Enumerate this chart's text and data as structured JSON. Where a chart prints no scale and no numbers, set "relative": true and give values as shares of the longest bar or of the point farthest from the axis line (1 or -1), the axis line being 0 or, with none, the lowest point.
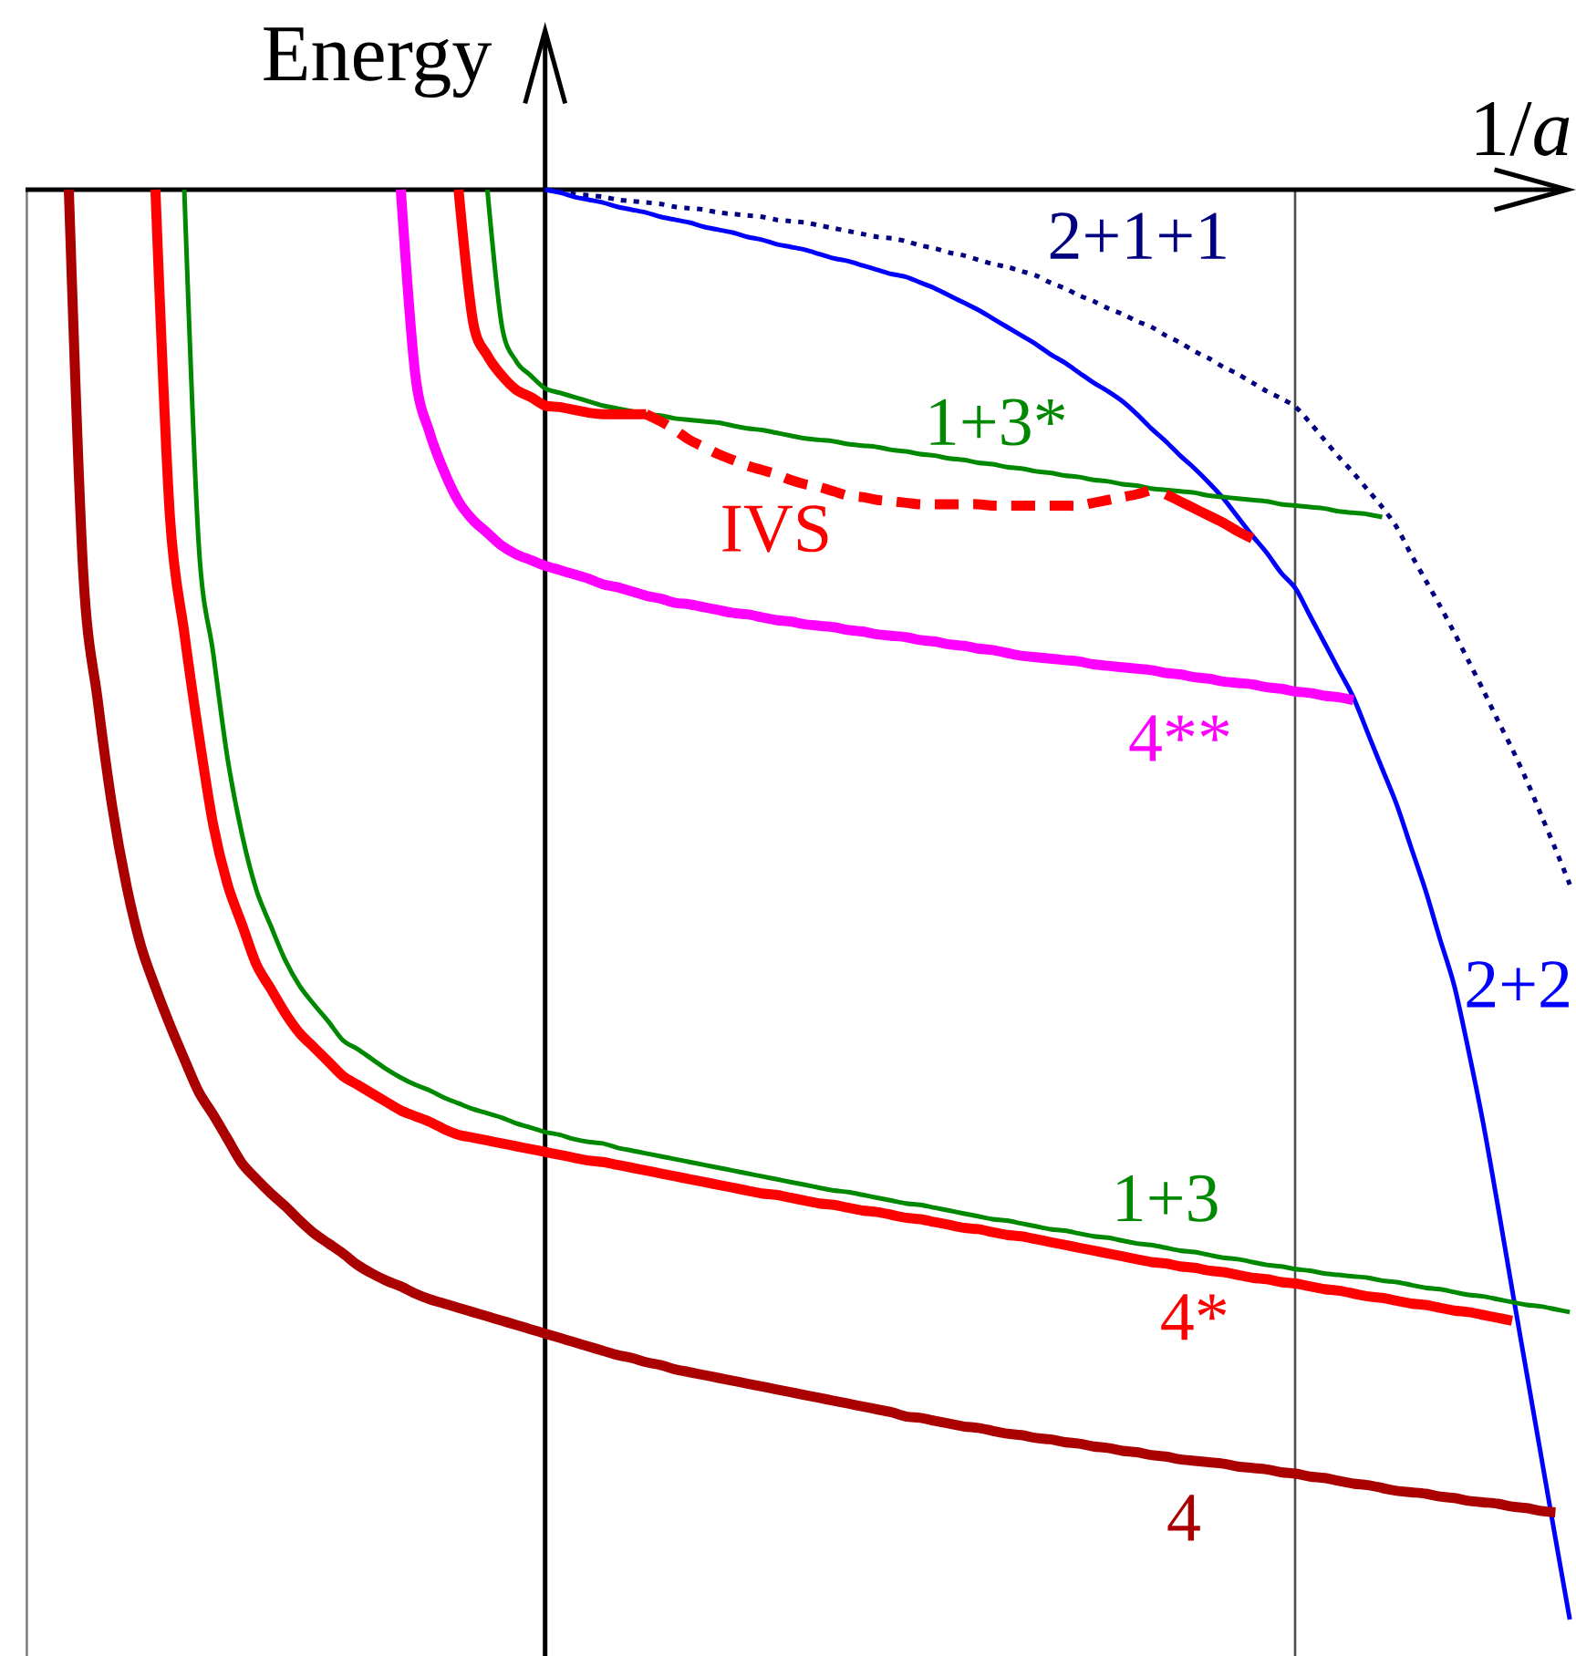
{
  "chart_data": {
    "type": "line",
    "relative": true,
    "xlabel": "1/*a*",
    "ylabel": "Energy",
    "categories": [
      null,
      null,
      null,
      null,
      null,
      null,
      null,
      null,
      null,
      null,
      null,
      null,
      null,
      null,
      null,
      null,
      null,
      null,
      null,
      null,
      null,
      null,
      null,
      null,
      null,
      null,
      null,
      null,
      null,
      null,
      null,
      null,
      null,
      null,
      null,
      null,
      null,
      null,
      null,
      null,
      null,
      null,
      null,
      null,
      null,
      null,
      null,
      null,
      null,
      null,
      null,
      null,
      null,
      null,
      null,
      null,
      null,
      null,
      null,
      null,
      null,
      null,
      null,
      null,
      null,
      null,
      null,
      null,
      null,
      null,
      null,
      null,
      null,
      null,
      null,
      null,
      null,
      null,
      null,
      null,
      null,
      null,
      null,
      null,
      null,
      null,
      null,
      null,
      null,
      null,
      null,
      null,
      null,
      null,
      null,
      null,
      null,
      null,
      null,
      null,
      null,
      null,
      null,
      null,
      null,
      null,
      null,
      null
    ],
    "series": [
      {
        "name": "2+1+1",
        "color": "#000080",
        "line_style": "dotted",
        "values": [
          null,
          null,
          null,
          null,
          null,
          null,
          null,
          null,
          null,
          null,
          null,
          null,
          null,
          null,
          null,
          null,
          null,
          null,
          null,
          null,
          null,
          null,
          null,
          null,
          null,
          null,
          null,
          null,
          null,
          null,
          null,
          null,
          null,
          null,
          null,
          null,
          0,
          -0.001,
          -0.003,
          -0.004,
          -0.005,
          -0.007,
          -0.008,
          -0.009,
          -0.01,
          -0.012,
          -0.013,
          -0.014,
          -0.016,
          -0.017,
          -0.018,
          -0.019,
          -0.021,
          -0.022,
          -0.023,
          -0.025,
          -0.027,
          -0.029,
          -0.031,
          -0.033,
          -0.034,
          -0.036,
          -0.039,
          -0.041,
          -0.044,
          -0.046,
          -0.049,
          -0.052,
          -0.054,
          -0.057,
          -0.06,
          -0.065,
          -0.069,
          -0.074,
          -0.078,
          -0.083,
          -0.087,
          -0.092,
          -0.096,
          -0.102,
          -0.107,
          -0.113,
          -0.118,
          -0.124,
          -0.129,
          -0.135,
          -0.141,
          -0.146,
          -0.152,
          -0.163,
          -0.175,
          -0.187,
          -0.198,
          -0.21,
          -0.222,
          -0.236,
          -0.255,
          -0.273,
          -0.291,
          -0.31,
          -0.33,
          -0.35,
          -0.371,
          -0.391,
          -0.413,
          -0.437,
          -0.461,
          -0.486
        ]
      },
      {
        "name": "2+2",
        "color": "#0000ff",
        "values": [
          null,
          null,
          null,
          null,
          null,
          null,
          null,
          null,
          null,
          null,
          null,
          null,
          null,
          null,
          null,
          null,
          null,
          null,
          null,
          null,
          null,
          null,
          null,
          null,
          null,
          null,
          null,
          null,
          null,
          null,
          null,
          null,
          null,
          null,
          null,
          null,
          0,
          -0.002,
          -0.005,
          -0.007,
          -0.009,
          -0.012,
          -0.014,
          -0.016,
          -0.019,
          -0.021,
          -0.023,
          -0.026,
          -0.028,
          -0.03,
          -0.033,
          -0.035,
          -0.038,
          -0.04,
          -0.042,
          -0.045,
          -0.048,
          -0.05,
          -0.053,
          -0.056,
          -0.059,
          -0.061,
          -0.065,
          -0.069,
          -0.074,
          -0.079,
          -0.084,
          -0.09,
          -0.096,
          -0.102,
          -0.108,
          -0.115,
          -0.121,
          -0.128,
          -0.135,
          -0.141,
          -0.148,
          -0.157,
          -0.167,
          -0.176,
          -0.186,
          -0.195,
          -0.205,
          -0.216,
          -0.229,
          -0.242,
          -0.254,
          -0.268,
          -0.279,
          -0.298,
          -0.317,
          -0.336,
          -0.355,
          -0.38,
          -0.405,
          -0.43,
          -0.46,
          -0.49,
          -0.524,
          -0.557,
          -0.603,
          -0.653,
          -0.71,
          -0.769,
          -0.827,
          -0.885,
          -0.943,
          -1.0
        ]
      },
      {
        "name": "1+3*",
        "color": "#008800",
        "values": [
          null,
          null,
          null,
          null,
          null,
          null,
          null,
          null,
          null,
          null,
          null,
          null,
          null,
          null,
          null,
          null,
          null,
          null,
          null,
          null,
          null,
          null,
          null,
          null,
          null,
          null,
          null,
          null,
          null,
          null,
          null,
          null,
          0,
          -0.095,
          -0.12,
          -0.13,
          -0.139,
          -0.142,
          -0.145,
          -0.148,
          -0.151,
          -0.153,
          -0.155,
          -0.157,
          -0.158,
          -0.16,
          -0.161,
          -0.162,
          -0.163,
          -0.165,
          -0.167,
          -0.168,
          -0.17,
          -0.172,
          -0.174,
          -0.175,
          -0.176,
          -0.178,
          -0.179,
          -0.18,
          -0.182,
          -0.183,
          -0.185,
          -0.186,
          -0.188,
          -0.189,
          -0.191,
          -0.192,
          -0.194,
          -0.195,
          -0.197,
          -0.198,
          -0.2,
          -0.201,
          -0.203,
          -0.204,
          -0.206,
          -0.207,
          -0.209,
          -0.21,
          -0.211,
          -0.212,
          -0.214,
          -0.215,
          -0.216,
          -0.217,
          -0.218,
          -0.22,
          -0.221,
          -0.222,
          -0.223,
          -0.225,
          -0.226,
          -0.227,
          -0.229,
          null,
          null,
          null,
          null,
          null,
          null,
          null,
          null,
          null,
          null,
          null,
          null,
          null
        ]
      },
      {
        "color": "#ff0000",
        "values": [
          null,
          null,
          null,
          null,
          null,
          null,
          null,
          null,
          null,
          null,
          null,
          null,
          null,
          null,
          null,
          null,
          null,
          null,
          null,
          null,
          null,
          null,
          null,
          null,
          null,
          null,
          null,
          null,
          null,
          null,
          0,
          -0.092,
          -0.116,
          -0.13,
          -0.14,
          -0.145,
          -0.151,
          -0.152,
          -0.154,
          -0.156,
          -0.157,
          -0.157,
          -0.157,
          -0.157,
          null,
          null,
          null,
          null,
          null,
          null,
          null,
          null,
          null,
          null,
          null,
          null,
          null,
          null,
          null,
          null,
          null,
          null,
          null,
          null,
          null,
          null,
          null,
          null,
          null,
          null,
          null,
          null,
          null,
          null,
          null,
          null,
          null,
          null,
          null,
          -0.213,
          -0.218,
          -0.223,
          -0.228,
          -0.233,
          -0.239,
          -0.244,
          null,
          null,
          null,
          null,
          null,
          null,
          null,
          null,
          null,
          null,
          null,
          null,
          null,
          null,
          null,
          null,
          null,
          null,
          null,
          null,
          null,
          null
        ]
      },
      {
        "name": "IVS",
        "color": "#ff0000",
        "line_style": "dashed",
        "values": [
          null,
          null,
          null,
          null,
          null,
          null,
          null,
          null,
          null,
          null,
          null,
          null,
          null,
          null,
          null,
          null,
          null,
          null,
          null,
          null,
          null,
          null,
          null,
          null,
          null,
          null,
          null,
          null,
          null,
          null,
          null,
          null,
          null,
          null,
          null,
          null,
          null,
          null,
          null,
          null,
          null,
          null,
          null,
          -0.157,
          -0.162,
          -0.168,
          -0.175,
          -0.18,
          -0.185,
          -0.189,
          -0.193,
          -0.196,
          -0.199,
          -0.203,
          -0.206,
          -0.208,
          -0.211,
          -0.214,
          -0.215,
          -0.217,
          -0.218,
          -0.219,
          -0.22,
          -0.22,
          -0.22,
          -0.22,
          -0.22,
          -0.221,
          -0.221,
          -0.221,
          -0.221,
          -0.221,
          -0.221,
          -0.221,
          -0.219,
          -0.217,
          -0.215,
          -0.213,
          -0.21,
          null,
          null,
          null,
          null,
          null,
          null,
          null,
          null,
          null,
          null,
          null,
          null,
          null,
          null,
          null,
          null,
          null,
          null,
          null,
          null,
          null,
          null,
          null,
          null,
          null,
          null,
          null,
          null,
          null
        ]
      },
      {
        "name": "4**",
        "color": "#ff00ff",
        "values": [
          null,
          null,
          null,
          null,
          null,
          null,
          null,
          null,
          null,
          null,
          null,
          null,
          null,
          null,
          null,
          null,
          null,
          null,
          null,
          null,
          null,
          null,
          null,
          null,
          null,
          null,
          0,
          -0.129,
          -0.17,
          -0.197,
          -0.218,
          -0.231,
          -0.24,
          -0.249,
          -0.255,
          -0.259,
          -0.263,
          -0.266,
          -0.269,
          -0.272,
          -0.276,
          -0.278,
          -0.281,
          -0.284,
          -0.286,
          -0.289,
          -0.29,
          -0.292,
          -0.294,
          -0.296,
          -0.297,
          -0.299,
          -0.301,
          -0.302,
          -0.304,
          -0.305,
          -0.306,
          -0.308,
          -0.309,
          -0.311,
          -0.312,
          -0.313,
          -0.315,
          -0.316,
          -0.318,
          -0.319,
          -0.321,
          -0.322,
          -0.324,
          -0.326,
          -0.327,
          -0.328,
          -0.329,
          -0.33,
          -0.332,
          -0.333,
          -0.334,
          -0.335,
          -0.336,
          -0.338,
          -0.339,
          -0.341,
          -0.342,
          -0.344,
          -0.345,
          -0.346,
          -0.348,
          -0.349,
          -0.351,
          -0.352,
          -0.354,
          -0.355,
          -0.357,
          null,
          null,
          null,
          null,
          null,
          null,
          null,
          null,
          null,
          null,
          null,
          null,
          null,
          null,
          null
        ]
      },
      {
        "name": "1+3",
        "color": "#008800",
        "values": [
          null,
          null,
          null,
          null,
          null,
          null,
          null,
          null,
          null,
          null,
          null,
          0,
          -0.248,
          -0.324,
          -0.398,
          -0.451,
          -0.49,
          -0.515,
          -0.539,
          -0.557,
          -0.57,
          -0.582,
          -0.595,
          -0.601,
          -0.608,
          -0.615,
          -0.621,
          -0.626,
          -0.63,
          -0.635,
          -0.639,
          -0.643,
          -0.646,
          -0.649,
          -0.653,
          -0.656,
          -0.659,
          -0.661,
          -0.664,
          -0.666,
          -0.667,
          -0.67,
          -0.672,
          -0.674,
          -0.676,
          -0.678,
          -0.68,
          -0.682,
          -0.684,
          -0.686,
          -0.688,
          -0.69,
          -0.692,
          -0.694,
          -0.696,
          -0.698,
          -0.7,
          -0.701,
          -0.703,
          -0.705,
          -0.707,
          -0.709,
          -0.71,
          -0.712,
          -0.714,
          -0.716,
          -0.718,
          -0.72,
          -0.721,
          -0.723,
          -0.725,
          -0.727,
          -0.728,
          -0.73,
          -0.732,
          -0.733,
          -0.735,
          -0.737,
          -0.738,
          -0.74,
          -0.742,
          -0.743,
          -0.745,
          -0.747,
          -0.748,
          -0.75,
          -0.752,
          -0.753,
          -0.755,
          -0.756,
          -0.758,
          -0.759,
          -0.76,
          -0.761,
          -0.763,
          -0.764,
          -0.766,
          -0.768,
          -0.769,
          -0.771,
          -0.773,
          -0.774,
          -0.776,
          -0.778,
          -0.78,
          -0.781,
          -0.783,
          -0.785
        ]
      },
      {
        "name": "4*",
        "color": "#ff0000",
        "values": [
          null,
          null,
          null,
          null,
          null,
          null,
          null,
          null,
          null,
          0,
          -0.228,
          -0.31,
          -0.381,
          -0.444,
          -0.486,
          -0.514,
          -0.542,
          -0.559,
          -0.576,
          -0.59,
          -0.6,
          -0.61,
          -0.62,
          -0.626,
          -0.632,
          -0.638,
          -0.644,
          -0.648,
          -0.652,
          -0.657,
          -0.661,
          -0.663,
          -0.665,
          -0.667,
          -0.669,
          -0.671,
          -0.673,
          -0.675,
          -0.677,
          -0.679,
          -0.68,
          -0.682,
          -0.684,
          -0.686,
          -0.688,
          -0.69,
          -0.692,
          -0.694,
          -0.696,
          -0.698,
          -0.7,
          -0.702,
          -0.703,
          -0.705,
          -0.707,
          -0.709,
          -0.71,
          -0.712,
          -0.714,
          -0.715,
          -0.717,
          -0.719,
          -0.72,
          -0.722,
          -0.724,
          -0.726,
          -0.727,
          -0.729,
          -0.731,
          -0.732,
          -0.734,
          -0.736,
          -0.738,
          -0.74,
          -0.742,
          -0.744,
          -0.746,
          -0.748,
          -0.75,
          -0.751,
          -0.753,
          -0.754,
          -0.756,
          -0.757,
          -0.759,
          -0.761,
          -0.762,
          -0.764,
          -0.765,
          -0.767,
          -0.769,
          -0.77,
          -0.772,
          -0.774,
          -0.775,
          -0.777,
          -0.779,
          -0.78,
          -0.782,
          -0.784,
          -0.785,
          -0.787,
          -0.789,
          -0.791,
          null,
          null,
          null,
          null
        ]
      },
      {
        "name": "4",
        "color": "#aa0000",
        "values": [
          null,
          null,
          null,
          0,
          -0.268,
          -0.357,
          -0.431,
          -0.487,
          -0.529,
          -0.558,
          -0.584,
          -0.608,
          -0.631,
          -0.647,
          -0.664,
          -0.681,
          -0.692,
          -0.702,
          -0.711,
          -0.721,
          -0.73,
          -0.737,
          -0.744,
          -0.752,
          -0.758,
          -0.763,
          -0.767,
          -0.772,
          -0.776,
          -0.779,
          -0.782,
          -0.785,
          -0.788,
          -0.791,
          -0.794,
          -0.797,
          -0.8,
          -0.803,
          -0.806,
          -0.809,
          -0.812,
          -0.815,
          -0.817,
          -0.82,
          -0.822,
          -0.825,
          -0.827,
          -0.829,
          -0.831,
          -0.833,
          -0.835,
          -0.837,
          -0.839,
          -0.841,
          -0.843,
          -0.845,
          -0.847,
          -0.849,
          -0.851,
          -0.853,
          -0.855,
          -0.858,
          -0.859,
          -0.861,
          -0.863,
          -0.865,
          -0.866,
          -0.868,
          -0.87,
          -0.871,
          -0.873,
          -0.874,
          -0.876,
          -0.877,
          -0.879,
          -0.88,
          -0.882,
          -0.883,
          -0.885,
          -0.886,
          -0.888,
          -0.889,
          -0.89,
          -0.891,
          -0.893,
          -0.894,
          -0.895,
          -0.897,
          -0.898,
          -0.9,
          -0.901,
          -0.903,
          -0.905,
          -0.906,
          -0.908,
          -0.91,
          -0.911,
          -0.912,
          -0.914,
          -0.915,
          -0.917,
          -0.918,
          -0.919,
          -0.921,
          -0.922,
          -0.924,
          -0.925,
          null
        ]
      }
    ]
  }
}
